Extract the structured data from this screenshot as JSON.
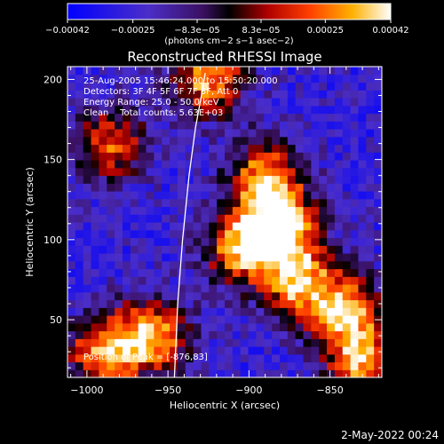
{
  "chart_data": {
    "type": "heatmap",
    "title": "Reconstructed RHESSI Image",
    "xlabel": "Heliocentric X (arcsec)",
    "ylabel": "Heliocentric Y (arcsec)",
    "xlim": [
      -1012,
      -818
    ],
    "ylim": [
      14,
      208
    ],
    "x_ticks": [
      -1000,
      -950,
      -900,
      -850
    ],
    "x_tick_labels": [
      "−1000",
      "−950",
      "−900",
      "−850"
    ],
    "y_ticks": [
      50,
      100,
      150,
      200
    ],
    "y_tick_labels": [
      "50",
      "100",
      "150",
      "200"
    ],
    "colorbar": {
      "min": -0.00042,
      "max": 0.00042,
      "ticks": [
        -0.00042,
        -0.00025,
        -8.3e-05,
        8.3e-05,
        0.00025,
        0.00042
      ],
      "tick_labels": [
        "−0.00042",
        "−0.00025",
        "−8.3e−05",
        "8.3e−05",
        "0.00025",
        "0.00042"
      ],
      "unit_label": "(photons cm−2 s−1 asec−2)",
      "colormap": "blue-purple-black-red-orange-yellow-white"
    },
    "limb_curve": [
      [
        -946,
        14
      ],
      [
        -944,
        60
      ],
      [
        -941,
        100
      ],
      [
        -937,
        140
      ],
      [
        -933,
        170
      ],
      [
        -929,
        192
      ],
      [
        -927,
        204
      ]
    ],
    "bright_regions": [
      {
        "x": -880,
        "y": 110,
        "value": 0.00035
      },
      {
        "x": -905,
        "y": 95,
        "value": 0.0003
      },
      {
        "x": -870,
        "y": 75,
        "value": 0.00032
      },
      {
        "x": -890,
        "y": 140,
        "value": 0.00028
      },
      {
        "x": -925,
        "y": 200,
        "value": 0.0003
      },
      {
        "x": -960,
        "y": 40,
        "value": 0.00033
      },
      {
        "x": -990,
        "y": 30,
        "value": 0.00028
      },
      {
        "x": -840,
        "y": 55,
        "value": 0.00034
      },
      {
        "x": -830,
        "y": 20,
        "value": 0.0003
      },
      {
        "x": -985,
        "y": 160,
        "value": 0.0002
      }
    ],
    "peak": {
      "x": -876,
      "y": 83
    }
  },
  "annotations": {
    "time_range": "25-Aug-2005 15:46:24.000 to 15:50:20.000",
    "detectors": "Detectors: 3F 4F 5F 6F 7F 8F, Att 0",
    "energy": "Energy Range: 25.0 - 50.0 keV",
    "clean": "Clean    Total counts: 5.63E+03",
    "peak_position": "Position of Peak = [-876,83]"
  },
  "footer_date": "2-May-2022 00:24",
  "colors": {
    "background": "#000000",
    "foreground": "#ffffff"
  }
}
